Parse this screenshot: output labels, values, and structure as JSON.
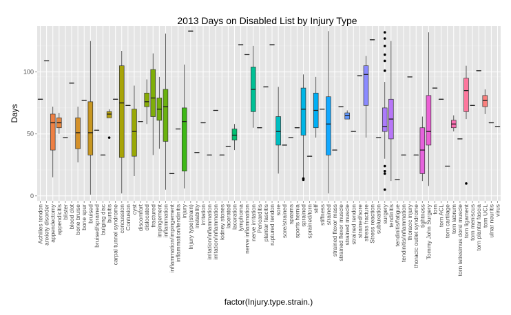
{
  "chart_data": {
    "type": "boxplot",
    "title": "2013 Days on Disabled List by Injury Type",
    "xlabel": "factor(Injury.type.strain.)",
    "ylabel": "Days",
    "ylim": [
      -4,
      137
    ],
    "yticks": [
      0,
      50,
      100
    ],
    "grid": true,
    "legend": "none",
    "panel_background": "#e5e5e5",
    "categories": [
      {
        "label": "Achilles tendon",
        "min": 78,
        "q1": 78,
        "median": 78,
        "q3": 78,
        "max": 78,
        "outliers": [],
        "color": "#F8766D"
      },
      {
        "label": "anxiety disorder",
        "min": 109,
        "q1": 109,
        "median": 109,
        "q3": 109,
        "max": 109,
        "outliers": [],
        "color": "#F47C4A"
      },
      {
        "label": "appendectomy",
        "min": 15,
        "q1": 37,
        "median": 59,
        "q3": 66,
        "max": 72,
        "outliers": [],
        "color": "#EE8044"
      },
      {
        "label": "appendicitis",
        "min": 50,
        "q1": 55,
        "median": 59,
        "q3": 63,
        "max": 67,
        "outliers": [],
        "color": "#E7853E"
      },
      {
        "label": "blister",
        "min": 47,
        "q1": 47,
        "median": 47,
        "q3": 47,
        "max": 47,
        "outliers": [],
        "color": "#E08A37"
      },
      {
        "label": "blood clot",
        "min": 91,
        "q1": 91,
        "median": 91,
        "q3": 91,
        "max": 91,
        "outliers": [],
        "color": "#D98E30"
      },
      {
        "label": "bone bruise",
        "min": 27,
        "q1": 38,
        "median": 51,
        "q3": 63,
        "max": 72,
        "outliers": [],
        "color": "#D4912B"
      },
      {
        "label": "bone spur",
        "min": 77,
        "q1": 77,
        "median": 77,
        "q3": 77,
        "max": 77,
        "outliers": [],
        "color": "#CE9426"
      },
      {
        "label": "bruised",
        "min": 1,
        "q1": 33,
        "median": 51,
        "q3": 76,
        "max": 125,
        "outliers": [],
        "color": "#C89721"
      },
      {
        "label": "bruised/sprained",
        "min": 53,
        "q1": 53,
        "median": 53,
        "q3": 53,
        "max": 53,
        "outliers": [],
        "color": "#C19A1C"
      },
      {
        "label": "bulging disc",
        "min": 33,
        "q1": 33,
        "median": 33,
        "q3": 33,
        "max": 33,
        "outliers": [],
        "color": "#BB9D16"
      },
      {
        "label": "bursitis",
        "min": 63,
        "q1": 63,
        "median": 66,
        "q3": 68,
        "max": 70,
        "outliers": [
          47
        ],
        "color": "#B49F11"
      },
      {
        "label": "carpal tunnel syndrome",
        "min": 78,
        "q1": 78,
        "median": 78,
        "q3": 78,
        "max": 78,
        "outliers": [],
        "color": "#AEA20C"
      },
      {
        "label": "concussion",
        "min": 2,
        "q1": 31,
        "median": 75,
        "q3": 105,
        "max": 117,
        "outliers": [],
        "color": "#A8A408"
      },
      {
        "label": "Contusion",
        "min": 73,
        "q1": 73,
        "median": 73,
        "q3": 73,
        "max": 73,
        "outliers": [],
        "color": "#A1A606"
      },
      {
        "label": "cyst",
        "min": 16,
        "q1": 32,
        "median": 52,
        "q3": 70,
        "max": 89,
        "outliers": [],
        "color": "#99A805"
      },
      {
        "label": "discomfort",
        "min": 60,
        "q1": 60,
        "median": 60,
        "q3": 60,
        "max": 60,
        "outliers": [],
        "color": "#91AA05"
      },
      {
        "label": "dislocated",
        "min": 58,
        "q1": 72,
        "median": 76,
        "q3": 83,
        "max": 94,
        "outliers": [],
        "color": "#88AC06"
      },
      {
        "label": "fractured",
        "min": 33,
        "q1": 64,
        "median": 79,
        "q3": 102,
        "max": 115,
        "outliers": [],
        "color": "#7FAE08"
      },
      {
        "label": "impingement",
        "min": 38,
        "q1": 61,
        "median": 70,
        "q3": 79,
        "max": 96,
        "outliers": [],
        "color": "#75B00A"
      },
      {
        "label": "inflammation",
        "min": 5,
        "q1": 44,
        "median": 72,
        "q3": 86,
        "max": 131,
        "outliers": [],
        "color": "#6AB20D"
      },
      {
        "label": "inflammation/impingement",
        "min": 18,
        "q1": 18,
        "median": 18,
        "q3": 18,
        "max": 18,
        "outliers": [],
        "color": "#5EB410"
      },
      {
        "label": "inflammation/tendinitis",
        "min": 54,
        "q1": 54,
        "median": 54,
        "q3": 54,
        "max": 54,
        "outliers": [],
        "color": "#50B613"
      },
      {
        "label": "injury",
        "min": 6,
        "q1": 20,
        "median": 60,
        "q3": 71,
        "max": 106,
        "outliers": [],
        "color": "#3DB816"
      },
      {
        "label": "Injury type(strain)",
        "min": 133,
        "q1": 133,
        "median": 133,
        "q3": 133,
        "max": 133,
        "outliers": [],
        "color": "#26BA1A"
      },
      {
        "label": "instability",
        "min": 35,
        "q1": 35,
        "median": 35,
        "q3": 35,
        "max": 35,
        "outliers": [],
        "color": "#0CBB22"
      },
      {
        "label": "irritation",
        "min": 59,
        "q1": 59,
        "median": 59,
        "q3": 59,
        "max": 59,
        "outliers": [],
        "color": "#00BC30"
      },
      {
        "label": "irritation/inflammation",
        "min": 33,
        "q1": 33,
        "median": 33,
        "q3": 33,
        "max": 33,
        "outliers": [],
        "color": "#00BD3E"
      },
      {
        "label": "irritation/inflammation",
        "min": 69,
        "q1": 69,
        "median": 69,
        "q3": 69,
        "max": 69,
        "outliers": [],
        "color": "#00BE4B"
      },
      {
        "label": "kidney stones",
        "min": 33,
        "q1": 33,
        "median": 33,
        "q3": 33,
        "max": 33,
        "outliers": [],
        "color": "#00BF58"
      },
      {
        "label": "lacerated",
        "min": 40,
        "q1": 40,
        "median": 40,
        "q3": 40,
        "max": 40,
        "outliers": [],
        "color": "#00BF65"
      },
      {
        "label": "laceration",
        "min": 37,
        "q1": 45,
        "median": 49,
        "q3": 54,
        "max": 58,
        "outliers": [],
        "color": "#00C071"
      },
      {
        "label": "lymphoma",
        "min": 122,
        "q1": 122,
        "median": 122,
        "q3": 122,
        "max": 122,
        "outliers": [],
        "color": "#00C07D"
      },
      {
        "label": "nerve inflammation",
        "min": 114,
        "q1": 114,
        "median": 114,
        "q3": 114,
        "max": 114,
        "outliers": [],
        "color": "#00C089"
      },
      {
        "label": "nerve irritation",
        "min": 55,
        "q1": 68,
        "median": 86,
        "q3": 104,
        "max": 121,
        "outliers": [],
        "color": "#00C095"
      },
      {
        "label": "Pericarditis",
        "min": 55,
        "q1": 55,
        "median": 55,
        "q3": 55,
        "max": 55,
        "outliers": [],
        "color": "#00C0A0"
      },
      {
        "label": "plantar fascitis",
        "min": 88,
        "q1": 88,
        "median": 88,
        "q3": 88,
        "max": 88,
        "outliers": [],
        "color": "#00BFAB"
      },
      {
        "label": "ruptured tendon",
        "min": 122,
        "q1": 122,
        "median": 122,
        "q3": 122,
        "max": 122,
        "outliers": [],
        "color": "#00BEB6"
      },
      {
        "label": "sore",
        "min": 18,
        "q1": 41,
        "median": 52,
        "q3": 64,
        "max": 88,
        "outliers": [],
        "color": "#00BDC0"
      },
      {
        "label": "sore/strained",
        "min": 41,
        "q1": 41,
        "median": 41,
        "q3": 41,
        "max": 41,
        "outliers": [],
        "color": "#00BCCA"
      },
      {
        "label": "spasms",
        "min": 47,
        "q1": 47,
        "median": 47,
        "q3": 47,
        "max": 47,
        "outliers": [],
        "color": "#00BAD4"
      },
      {
        "label": "sports hernia",
        "min": 55,
        "q1": 55,
        "median": 55,
        "q3": 55,
        "max": 55,
        "outliers": [],
        "color": "#00B8DD"
      },
      {
        "label": "sprained",
        "min": 15,
        "q1": 49,
        "median": 70,
        "q3": 87,
        "max": 98,
        "outliers": [
          13,
          14
        ],
        "color": "#00B6E6"
      },
      {
        "label": "sprained/torn",
        "min": 32,
        "q1": 32,
        "median": 32,
        "q3": 32,
        "max": 32,
        "outliers": [],
        "color": "#00B3EE"
      },
      {
        "label": "stiff",
        "min": 47,
        "q1": 55,
        "median": 69,
        "q3": 83,
        "max": 96,
        "outliers": [],
        "color": "#00AFF5"
      },
      {
        "label": "stiffness",
        "min": 70,
        "q1": 70,
        "median": 70,
        "q3": 70,
        "max": 70,
        "outliers": [],
        "color": "#00ACFB"
      },
      {
        "label": "strained",
        "min": 2,
        "q1": 33,
        "median": 58,
        "q3": 80,
        "max": 133,
        "outliers": [],
        "color": "#12A8FF"
      },
      {
        "label": "strained flexor mass",
        "min": 37,
        "q1": 37,
        "median": 37,
        "q3": 37,
        "max": 37,
        "outliers": [],
        "color": "#3AA3FF"
      },
      {
        "label": "strained flexor muscle",
        "min": 72,
        "q1": 72,
        "median": 72,
        "q3": 72,
        "max": 72,
        "outliers": [],
        "color": "#519EFF"
      },
      {
        "label": "strained muscle",
        "min": 62,
        "q1": 62,
        "median": 65,
        "q3": 67,
        "max": 69,
        "outliers": [],
        "color": "#6299FF"
      },
      {
        "label": "strained tendon",
        "min": 52,
        "q1": 52,
        "median": 52,
        "q3": 52,
        "max": 52,
        "outliers": [],
        "color": "#7194FF"
      },
      {
        "label": "strained/sore",
        "min": 97,
        "q1": 97,
        "median": 97,
        "q3": 97,
        "max": 97,
        "outliers": [],
        "color": "#7E8FFF"
      },
      {
        "label": "stress fracture",
        "min": 47,
        "q1": 73,
        "median": 98,
        "q3": 105,
        "max": 113,
        "outliers": [],
        "color": "#8A8AFF"
      },
      {
        "label": "Stress reaction",
        "min": 126,
        "q1": 126,
        "median": 126,
        "q3": 126,
        "max": 126,
        "outliers": [],
        "color": "#9585FF"
      },
      {
        "label": "subluxation",
        "min": 47,
        "q1": 47,
        "median": 47,
        "q3": 47,
        "max": 47,
        "outliers": [],
        "color": "#A080FF"
      },
      {
        "label": "surgery",
        "min": 30,
        "q1": 52,
        "median": 56,
        "q3": 71,
        "max": 92,
        "outliers": [
          5,
          18,
          20,
          24,
          101,
          109,
          114,
          121,
          127,
          132
        ],
        "color": "#AB7BFB"
      },
      {
        "label": "tendinitis",
        "min": 12,
        "q1": 46,
        "median": 62,
        "q3": 78,
        "max": 125,
        "outliers": [],
        "color": "#B776F7"
      },
      {
        "label": "tendinitis/fatigue",
        "min": 13,
        "q1": 13,
        "median": 13,
        "q3": 13,
        "max": 13,
        "outliers": [],
        "color": "#C171F2"
      },
      {
        "label": "tendinitis/inflammation",
        "min": 33,
        "q1": 33,
        "median": 33,
        "q3": 33,
        "max": 33,
        "outliers": [],
        "color": "#CB6DEE"
      },
      {
        "label": "thoracic injury",
        "min": 96,
        "q1": 96,
        "median": 96,
        "q3": 96,
        "max": 96,
        "outliers": [],
        "color": "#D469E9"
      },
      {
        "label": "thoracic outlet syndrome",
        "min": 33,
        "q1": 33,
        "median": 33,
        "q3": 33,
        "max": 33,
        "outliers": [],
        "color": "#DD66E3"
      },
      {
        "label": "tightness",
        "min": 12,
        "q1": 18,
        "median": 37,
        "q3": 55,
        "max": 64,
        "outliers": [],
        "color": "#E563DC"
      },
      {
        "label": "Tommy John Surgery",
        "min": 8,
        "q1": 41,
        "median": 52,
        "q3": 81,
        "max": 132,
        "outliers": [],
        "color": "#EC61D5"
      },
      {
        "label": "torn",
        "min": 87,
        "q1": 87,
        "median": 87,
        "q3": 87,
        "max": 87,
        "outliers": [],
        "color": "#F263CE"
      },
      {
        "label": "torn ACL",
        "min": 78,
        "q1": 78,
        "median": 78,
        "q3": 78,
        "max": 78,
        "outliers": [],
        "color": "#F667C5"
      },
      {
        "label": "torn cartilage",
        "min": 24,
        "q1": 24,
        "median": 24,
        "q3": 24,
        "max": 24,
        "outliers": [],
        "color": "#F96BBB"
      },
      {
        "label": "torn labrum",
        "min": 52,
        "q1": 55,
        "median": 58,
        "q3": 61,
        "max": 65,
        "outliers": [],
        "color": "#FB6FB1"
      },
      {
        "label": "torn latissimus dorsi muscle",
        "min": 46,
        "q1": 46,
        "median": 46,
        "q3": 46,
        "max": 46,
        "outliers": [],
        "color": "#FD73A7"
      },
      {
        "label": "torn ligament",
        "min": 62,
        "q1": 68,
        "median": 85,
        "q3": 95,
        "max": 105,
        "outliers": [
          10
        ],
        "color": "#FD779D"
      },
      {
        "label": "torn meniscus",
        "min": 73,
        "q1": 73,
        "median": 73,
        "q3": 73,
        "max": 73,
        "outliers": [],
        "color": "#FD7B92"
      },
      {
        "label": "torn plantar fascia",
        "min": 101,
        "q1": 101,
        "median": 101,
        "q3": 101,
        "max": 101,
        "outliers": [],
        "color": "#FC7E88"
      },
      {
        "label": "torn UCL",
        "min": 66,
        "q1": 72,
        "median": 77,
        "q3": 81,
        "max": 86,
        "outliers": [],
        "color": "#FA807D"
      },
      {
        "label": "ulnar neuritis",
        "min": 59,
        "q1": 59,
        "median": 59,
        "q3": 59,
        "max": 59,
        "outliers": [],
        "color": "#F98173"
      },
      {
        "label": "virus",
        "min": 56,
        "q1": 56,
        "median": 56,
        "q3": 56,
        "max": 56,
        "outliers": [],
        "color": "#F8766D"
      }
    ]
  }
}
